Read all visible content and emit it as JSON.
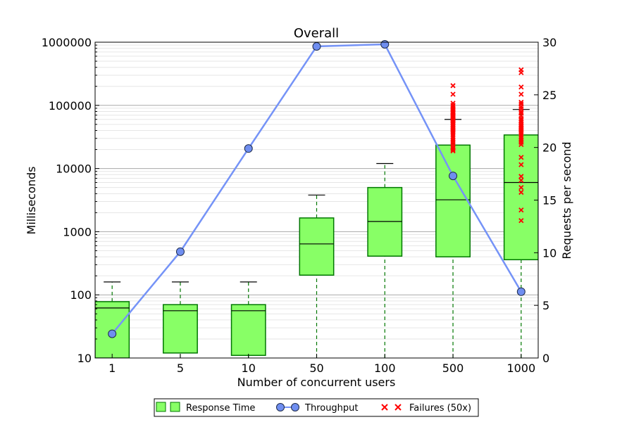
{
  "chart_data": {
    "type": "box",
    "title": "Overall",
    "xlabel": "Number of concurrent users",
    "ylabel": "Milliseconds",
    "y2label": "Requests per second",
    "categories": [
      "1",
      "5",
      "10",
      "50",
      "100",
      "500",
      "1000"
    ],
    "y_scale": "log",
    "ylim": [
      10,
      1000000
    ],
    "y_ticks": [
      "10",
      "100",
      "1000",
      "10000",
      "100000",
      "1000000"
    ],
    "y2lim": [
      0,
      30
    ],
    "y2_ticks": [
      "0",
      "5",
      "10",
      "15",
      "20",
      "25",
      "30"
    ],
    "grid": "horizontal, major and minor (log)",
    "legend_position": "bottom-center",
    "colors": {
      "box_fill": "#88ff66",
      "box_edge": "#007700",
      "median": "#000000",
      "whisker": "#007700",
      "throughput_line": "#7593f7",
      "throughput_marker": "#6f8ef0",
      "failure": "#ff0000"
    },
    "series": [
      {
        "name": "Response Time",
        "kind": "box",
        "boxes": [
          {
            "q1": 10,
            "median": 62,
            "q3": 78,
            "whisker_high": 160
          },
          {
            "q1": 12,
            "median": 56,
            "q3": 70,
            "whisker_high": 160
          },
          {
            "q1": 11,
            "median": 56,
            "q3": 70,
            "whisker_high": 160
          },
          {
            "q1": 205,
            "median": 640,
            "q3": 1650,
            "whisker_high": 3800
          },
          {
            "q1": 410,
            "median": 1450,
            "q3": 5000,
            "whisker_high": 12000
          },
          {
            "q1": 400,
            "median": 3200,
            "q3": 23500,
            "whisker_high": 60000
          },
          {
            "q1": 360,
            "median": 6000,
            "q3": 34000,
            "whisker_high": 86000
          }
        ]
      },
      {
        "name": "Throughput",
        "kind": "line",
        "axis": "right",
        "values": [
          2.3,
          10.1,
          19.9,
          29.6,
          29.8,
          17.3,
          6.3
        ]
      },
      {
        "name": "Failures (50x)",
        "kind": "scatter",
        "points": [
          {
            "category": "500",
            "values": [
              19000,
              20000,
              21000,
              22000,
              24000,
              26000,
              28000,
              30000,
              32000,
              34000,
              36000,
              38000,
              40000,
              42000,
              44000,
              46000,
              48000,
              50000,
              52000,
              54000,
              56000,
              58000,
              60000,
              62000,
              64000,
              66000,
              68000,
              70000,
              72000,
              75000,
              78000,
              82000,
              86000,
              90000,
              95000,
              100000,
              108000,
              150000,
              205000
            ]
          },
          {
            "category": "1000",
            "values": [
              1500,
              2200,
              4200,
              5000,
              6500,
              7500,
              11500,
              15000,
              24000,
              26000,
              28000,
              30000,
              32000,
              34000,
              36000,
              38000,
              40000,
              42000,
              44000,
              46000,
              48000,
              50000,
              54000,
              58000,
              62000,
              68000,
              75000,
              80000,
              88000,
              95000,
              105000,
              112000,
              150000,
              195000,
              330000,
              365000
            ]
          }
        ]
      }
    ]
  }
}
